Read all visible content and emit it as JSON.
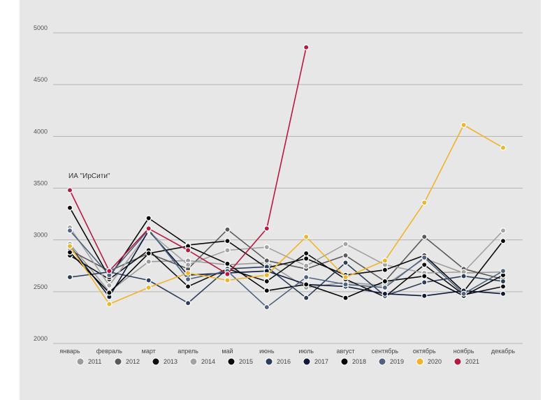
{
  "chart_data": {
    "type": "line",
    "title": "",
    "xlabel": "",
    "ylabel": "",
    "source_label": "ИА \"ИрСити\"",
    "categories": [
      "январь",
      "февраль",
      "март",
      "апрель",
      "май",
      "июнь",
      "июль",
      "август",
      "сентябрь",
      "октябрь",
      "ноябрь",
      "декабрь"
    ],
    "ylim": [
      2000,
      5000
    ],
    "yticks": [
      2000,
      2500,
      3000,
      3500,
      4000,
      4500,
      5000
    ],
    "grid": true,
    "legend_position": "bottom",
    "series": [
      {
        "name": "2011",
        "color": "#9b9b9b",
        "values": [
          2960,
          2500,
          2790,
          2800,
          2760,
          2780,
          2540,
          2590,
          2560,
          2820,
          2680,
          2690
        ]
      },
      {
        "name": "2012",
        "color": "#5a5a5a",
        "values": [
          2900,
          2700,
          2870,
          2720,
          3100,
          2800,
          2720,
          2850,
          2600,
          3030,
          2720,
          2620
        ]
      },
      {
        "name": "2013",
        "color": "#111111",
        "values": [
          2850,
          2620,
          2900,
          2550,
          2720,
          2600,
          2870,
          2620,
          2450,
          2760,
          2470,
          2550
        ]
      },
      {
        "name": "2014",
        "color": "#a3a3a3",
        "values": [
          3120,
          2560,
          3080,
          2760,
          2900,
          2930,
          2750,
          2960,
          2760,
          2680,
          2690,
          3090
        ]
      },
      {
        "name": "2015",
        "color": "#0a0a0a",
        "values": [
          3310,
          2640,
          3210,
          2950,
          2990,
          2730,
          2820,
          2660,
          2710,
          2850,
          2500,
          2990
        ]
      },
      {
        "name": "2016",
        "color": "#2c3e5e",
        "values": [
          2640,
          2690,
          2610,
          2390,
          2720,
          2740,
          2440,
          2780,
          2460,
          2590,
          2650,
          2600
        ]
      },
      {
        "name": "2017",
        "color": "#0e1a3a",
        "values": [
          2940,
          2450,
          3090,
          2660,
          2680,
          2700,
          2570,
          2550,
          2480,
          2460,
          2510,
          2480
        ]
      },
      {
        "name": "2018",
        "color": "#050505",
        "values": [
          2880,
          2490,
          2870,
          2940,
          2770,
          2510,
          2570,
          2440,
          2600,
          2650,
          2460,
          2660
        ]
      },
      {
        "name": "2019",
        "color": "#4e6380",
        "values": [
          3090,
          2660,
          3100,
          2620,
          2700,
          2350,
          2640,
          2570,
          2540,
          2830,
          2480,
          2700
        ]
      },
      {
        "name": "2020",
        "color": "#f0b428",
        "values": [
          2940,
          2380,
          2540,
          2680,
          2610,
          2660,
          3030,
          2640,
          2800,
          3360,
          4110,
          3890
        ]
      },
      {
        "name": "2021",
        "color": "#b7193f",
        "values": [
          3480,
          2700,
          3110,
          2900,
          2670,
          3110,
          4860,
          null,
          null,
          null,
          null,
          null
        ]
      }
    ]
  }
}
